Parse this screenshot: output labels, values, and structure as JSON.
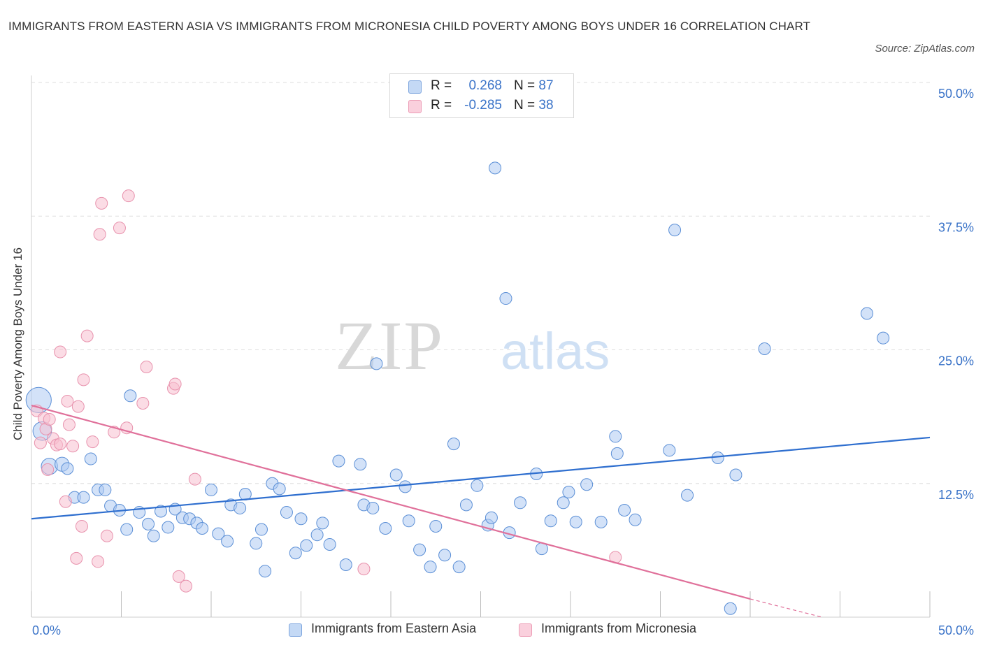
{
  "title": "IMMIGRANTS FROM EASTERN ASIA VS IMMIGRANTS FROM MICRONESIA CHILD POVERTY AMONG BOYS UNDER 16 CORRELATION CHART",
  "source": "Source: ZipAtlas.com",
  "watermark": {
    "zip": "ZIP",
    "atlas": "atlas"
  },
  "legend": {
    "rows": [
      {
        "r_label": "R =",
        "r_value": "0.268",
        "n_label": "N =",
        "n_value": "87",
        "color": "#aecbf2"
      },
      {
        "r_label": "R =",
        "r_value": "-0.285",
        "n_label": "N =",
        "n_value": "38",
        "color": "#f7bfd0"
      }
    ]
  },
  "bottom_legend": {
    "items": [
      {
        "label": "Immigrants from Eastern Asia",
        "color": "#aecbf2"
      },
      {
        "label": "Immigrants from Micronesia",
        "color": "#f7bfd0"
      }
    ]
  },
  "chart_data": {
    "type": "scatter",
    "title": "IMMIGRANTS FROM EASTERN ASIA VS IMMIGRANTS FROM MICRONESIA CHILD POVERTY AMONG BOYS UNDER 16 CORRELATION CHART",
    "xlabel": "",
    "ylabel": "Child Poverty Among Boys Under 16",
    "xlim": [
      0,
      50
    ],
    "ylim": [
      0,
      50
    ],
    "x_tick_labels": [
      "0.0%",
      "50.0%"
    ],
    "y_tick_values": [
      12.5,
      25.0,
      37.5,
      50.0
    ],
    "y_tick_labels": [
      "12.5%",
      "25.0%",
      "37.5%",
      "50.0%"
    ],
    "grid": true,
    "legend_position": "top-center",
    "series": [
      {
        "name": "Immigrants from Eastern Asia",
        "color": "#5b8fd6",
        "fill": "#aecbf2",
        "trend": {
          "x": [
            0,
            50
          ],
          "y": [
            9.2,
            16.8
          ],
          "color": "#2f6fcf"
        },
        "points": [
          [
            0.4,
            20.3,
            22
          ],
          [
            0.6,
            17.4,
            16
          ],
          [
            1.0,
            14.1,
            14
          ],
          [
            1.7,
            14.3,
            12
          ],
          [
            2.0,
            13.9,
            10
          ],
          [
            2.4,
            11.2,
            10
          ],
          [
            2.9,
            11.2,
            10
          ],
          [
            3.3,
            14.8,
            10
          ],
          [
            3.7,
            11.9,
            10
          ],
          [
            4.1,
            11.9,
            10
          ],
          [
            4.4,
            10.4,
            10
          ],
          [
            4.9,
            10.0,
            10
          ],
          [
            5.3,
            8.2,
            10
          ],
          [
            5.5,
            20.7,
            10
          ],
          [
            6.0,
            9.8,
            10
          ],
          [
            6.5,
            8.7,
            10
          ],
          [
            6.8,
            7.6,
            10
          ],
          [
            7.2,
            9.9,
            10
          ],
          [
            7.6,
            8.4,
            10
          ],
          [
            8.0,
            10.1,
            10
          ],
          [
            8.4,
            9.3,
            10
          ],
          [
            8.8,
            9.2,
            10
          ],
          [
            9.2,
            8.8,
            10
          ],
          [
            9.5,
            8.3,
            10
          ],
          [
            10.0,
            11.9,
            10
          ],
          [
            10.4,
            7.8,
            10
          ],
          [
            10.9,
            7.1,
            10
          ],
          [
            11.1,
            10.5,
            10
          ],
          [
            11.6,
            10.2,
            10
          ],
          [
            11.9,
            11.5,
            10
          ],
          [
            12.5,
            6.9,
            10
          ],
          [
            12.8,
            8.2,
            10
          ],
          [
            13.0,
            4.3,
            10
          ],
          [
            13.4,
            12.5,
            10
          ],
          [
            13.8,
            12.0,
            10
          ],
          [
            14.2,
            9.8,
            10
          ],
          [
            14.7,
            6.0,
            10
          ],
          [
            15.0,
            9.2,
            10
          ],
          [
            15.3,
            6.7,
            10
          ],
          [
            15.9,
            7.7,
            10
          ],
          [
            16.2,
            8.8,
            10
          ],
          [
            16.6,
            6.8,
            10
          ],
          [
            17.1,
            14.6,
            10
          ],
          [
            17.5,
            4.9,
            10
          ],
          [
            18.3,
            14.3,
            10
          ],
          [
            18.5,
            10.5,
            10
          ],
          [
            19.0,
            10.2,
            10
          ],
          [
            19.2,
            23.7,
            10
          ],
          [
            19.7,
            8.3,
            10
          ],
          [
            20.3,
            13.3,
            10
          ],
          [
            20.8,
            12.2,
            10
          ],
          [
            21.0,
            9.0,
            10
          ],
          [
            21.6,
            6.3,
            10
          ],
          [
            22.2,
            4.7,
            10
          ],
          [
            22.5,
            8.5,
            10
          ],
          [
            23.0,
            5.8,
            10
          ],
          [
            23.5,
            16.2,
            10
          ],
          [
            23.8,
            4.7,
            10
          ],
          [
            24.2,
            10.5,
            10
          ],
          [
            24.8,
            12.3,
            10
          ],
          [
            25.4,
            8.6,
            10
          ],
          [
            25.6,
            9.3,
            10
          ],
          [
            25.8,
            42.0,
            10
          ],
          [
            26.4,
            29.8,
            10
          ],
          [
            26.6,
            7.9,
            10
          ],
          [
            27.2,
            10.7,
            10
          ],
          [
            28.1,
            13.4,
            10
          ],
          [
            28.4,
            6.4,
            10
          ],
          [
            28.9,
            9.0,
            10
          ],
          [
            29.6,
            10.7,
            10
          ],
          [
            29.9,
            11.7,
            10
          ],
          [
            30.3,
            8.9,
            10
          ],
          [
            30.9,
            12.4,
            10
          ],
          [
            31.7,
            8.9,
            10
          ],
          [
            32.5,
            16.9,
            10
          ],
          [
            32.6,
            15.3,
            10
          ],
          [
            33.0,
            10.0,
            10
          ],
          [
            33.6,
            9.1,
            10
          ],
          [
            35.8,
            36.2,
            10
          ],
          [
            35.5,
            15.6,
            10
          ],
          [
            38.2,
            14.9,
            10
          ],
          [
            39.2,
            13.3,
            10
          ],
          [
            40.8,
            25.1,
            10
          ],
          [
            46.5,
            28.4,
            10
          ],
          [
            47.4,
            26.1,
            10
          ],
          [
            38.9,
            0.8,
            10
          ],
          [
            36.5,
            11.4,
            10
          ]
        ]
      },
      {
        "name": "Immigrants from Micronesia",
        "color": "#e892ad",
        "fill": "#f7bfd0",
        "trend": {
          "x": [
            0,
            40
          ],
          "y": [
            19.8,
            1.7
          ],
          "color": "#e0709a",
          "dashed_to": [
            44,
            0
          ]
        },
        "points": [
          [
            0.3,
            19.3,
            10
          ],
          [
            0.5,
            16.3,
            10
          ],
          [
            0.7,
            18.6,
            10
          ],
          [
            0.8,
            17.6,
            10
          ],
          [
            0.9,
            13.8,
            10
          ],
          [
            1.0,
            18.5,
            10
          ],
          [
            1.2,
            16.7,
            10
          ],
          [
            1.4,
            16.1,
            10
          ],
          [
            1.6,
            16.2,
            10
          ],
          [
            1.6,
            24.8,
            10
          ],
          [
            1.9,
            10.8,
            10
          ],
          [
            2.0,
            20.2,
            10
          ],
          [
            2.1,
            18.0,
            10
          ],
          [
            2.3,
            16.0,
            10
          ],
          [
            2.6,
            19.7,
            10
          ],
          [
            2.5,
            5.5,
            10
          ],
          [
            2.8,
            8.5,
            10
          ],
          [
            2.9,
            22.2,
            10
          ],
          [
            3.1,
            26.3,
            10
          ],
          [
            3.4,
            16.4,
            10
          ],
          [
            3.7,
            5.2,
            10
          ],
          [
            3.8,
            35.8,
            10
          ],
          [
            3.9,
            38.7,
            10
          ],
          [
            4.2,
            7.6,
            10
          ],
          [
            4.6,
            17.3,
            10
          ],
          [
            4.9,
            36.4,
            10
          ],
          [
            5.4,
            39.4,
            10
          ],
          [
            5.3,
            17.7,
            10
          ],
          [
            6.2,
            20.0,
            10
          ],
          [
            6.4,
            23.4,
            10
          ],
          [
            7.9,
            21.4,
            10
          ],
          [
            8.0,
            21.8,
            10
          ],
          [
            8.2,
            3.8,
            10
          ],
          [
            8.6,
            2.9,
            10
          ],
          [
            9.1,
            12.9,
            10
          ],
          [
            18.5,
            4.5,
            10
          ],
          [
            32.5,
            5.6,
            10
          ],
          [
            6.0,
            20.1,
            0
          ]
        ]
      }
    ]
  }
}
